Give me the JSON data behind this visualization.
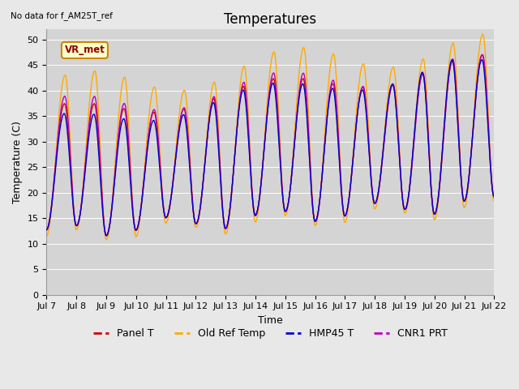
{
  "title": "Temperatures",
  "ylabel": "Temperature (C)",
  "xlabel": "Time",
  "note": "No data for f_AM25T_ref",
  "legend_label": "VR_met",
  "x_tick_labels": [
    "Jul 7",
    "Jul 8",
    "Jul 9",
    "Jul 10",
    "Jul 11",
    "Jul 12",
    "Jul 13",
    "Jul 14",
    "Jul 15",
    "Jul 16",
    "Jul 17",
    "Jul 18",
    "Jul 19",
    "Jul 20",
    "Jul 21",
    "Jul 22"
  ],
  "ylim": [
    0,
    52
  ],
  "yticks": [
    0,
    5,
    10,
    15,
    20,
    25,
    30,
    35,
    40,
    45,
    50
  ],
  "colors": {
    "Panel T": "#cc0000",
    "Old Ref Temp": "#ffaa00",
    "HMP45 T": "#0000cc",
    "CNR1 PRT": "#bb00bb"
  },
  "background_color": "#e8e8e8",
  "plot_bg": "#d4d4d4",
  "title_fontsize": 12,
  "axis_fontsize": 9,
  "tick_fontsize": 8,
  "legend_fontsize": 9
}
